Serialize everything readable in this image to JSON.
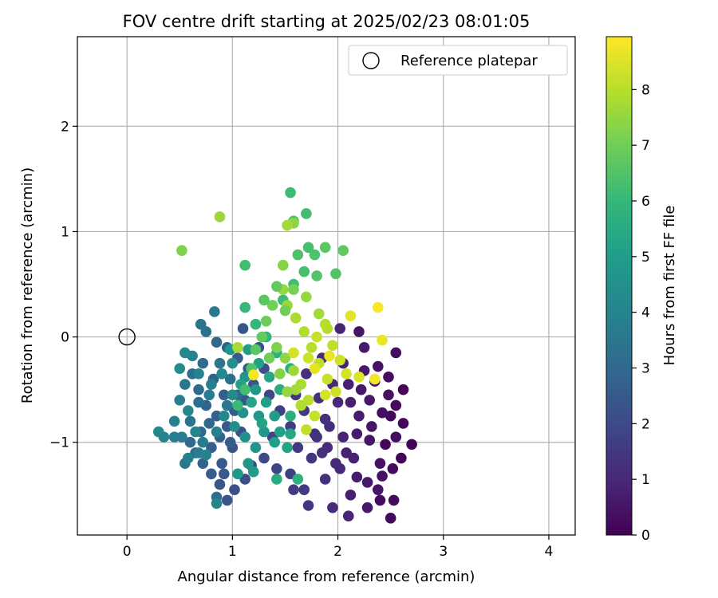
{
  "chart_data": {
    "type": "scatter",
    "title": "FOV centre drift starting at 2025/02/23 08:01:05",
    "xlabel": "Angular distance from reference (arcmin)",
    "ylabel": "Rotation from reference (arcmin)",
    "xlim": [
      -0.47,
      4.25
    ],
    "ylim": [
      -1.88,
      2.85
    ],
    "xticks": [
      "0",
      "1",
      "2",
      "3",
      "4"
    ],
    "yticks": [
      "−1",
      "0",
      "1",
      "2"
    ],
    "xtick_values": [
      0,
      1,
      2,
      3,
      4
    ],
    "ytick_values": [
      -1,
      0,
      1,
      2
    ],
    "grid": true,
    "legend": {
      "position": "top-right",
      "entries": [
        {
          "label": "Reference platepar"
        }
      ]
    },
    "reference_point": {
      "x": 0,
      "y": 0
    },
    "colorbar": {
      "label": "Hours from first FF file",
      "range": [
        0,
        8.95
      ],
      "ticks": [
        "0",
        "1",
        "2",
        "3",
        "4",
        "5",
        "6",
        "7",
        "8"
      ],
      "tick_values": [
        0,
        1,
        2,
        3,
        4,
        5,
        6,
        7,
        8
      ],
      "colormap": [
        "#440154",
        "#482878",
        "#3e4989",
        "#31688e",
        "#26828e",
        "#1f9e89",
        "#35b779",
        "#6ece58",
        "#b5de2b",
        "#fde725"
      ]
    },
    "points": [
      [
        2.55,
        -0.95,
        0.3
      ],
      [
        2.4,
        -1.2,
        0.4
      ],
      [
        2.3,
        -0.6,
        0.6
      ],
      [
        2.5,
        -0.75,
        0.2
      ],
      [
        2.62,
        -0.5,
        0.1
      ],
      [
        2.38,
        -1.45,
        0.5
      ],
      [
        2.18,
        -1.33,
        0.7
      ],
      [
        2.45,
        -1.02,
        0.15
      ],
      [
        2.6,
        -1.15,
        0.05
      ],
      [
        2.7,
        -1.02,
        0.1
      ],
      [
        2.5,
        -1.72,
        0.2
      ],
      [
        2.28,
        -1.62,
        0.6
      ],
      [
        2.1,
        -1.7,
        0.9
      ],
      [
        1.95,
        -1.62,
        1.1
      ],
      [
        2.4,
        -1.55,
        0.3
      ],
      [
        2.53,
        -1.55,
        0.25
      ],
      [
        2.15,
        -1.15,
        0.8
      ],
      [
        2.05,
        -0.95,
        0.9
      ],
      [
        2.2,
        -0.75,
        0.7
      ],
      [
        2.32,
        -0.85,
        0.5
      ],
      [
        2.48,
        -0.55,
        0.4
      ],
      [
        2.35,
        -0.42,
        0.35
      ],
      [
        2.22,
        -0.5,
        0.6
      ],
      [
        2.1,
        -0.45,
        0.8
      ],
      [
        2.0,
        -0.62,
        1.0
      ],
      [
        1.88,
        -0.78,
        1.2
      ],
      [
        1.78,
        -0.92,
        1.3
      ],
      [
        1.9,
        -1.05,
        1.1
      ],
      [
        1.75,
        -1.15,
        1.4
      ],
      [
        1.62,
        -1.05,
        1.5
      ],
      [
        1.55,
        -0.85,
        1.6
      ],
      [
        1.68,
        -0.7,
        1.5
      ],
      [
        1.82,
        -0.58,
        1.2
      ],
      [
        1.95,
        -0.45,
        1.0
      ],
      [
        2.05,
        -0.25,
        0.9
      ],
      [
        2.25,
        -0.1,
        0.6
      ],
      [
        2.55,
        -0.15,
        0.3
      ],
      [
        2.2,
        0.05,
        0.5
      ],
      [
        2.02,
        0.08,
        0.9
      ],
      [
        1.85,
        -0.2,
        1.1
      ],
      [
        1.7,
        -0.35,
        1.3
      ],
      [
        1.6,
        -0.55,
        1.5
      ],
      [
        1.45,
        -0.7,
        1.7
      ],
      [
        1.38,
        -0.95,
        1.8
      ],
      [
        1.3,
        -1.15,
        2.0
      ],
      [
        1.42,
        -1.25,
        1.9
      ],
      [
        1.55,
        -1.3,
        1.7
      ],
      [
        1.68,
        -1.45,
        1.5
      ],
      [
        1.58,
        -1.45,
        1.6
      ],
      [
        1.72,
        -1.6,
        1.4
      ],
      [
        1.88,
        -1.35,
        1.2
      ],
      [
        2.02,
        -1.25,
        1.0
      ],
      [
        2.12,
        -1.5,
        0.8
      ],
      [
        2.28,
        -1.38,
        0.6
      ],
      [
        2.42,
        -1.32,
        0.45
      ],
      [
        2.52,
        -1.25,
        0.3
      ],
      [
        2.62,
        -0.82,
        0.15
      ],
      [
        2.55,
        -0.65,
        0.2
      ],
      [
        2.42,
        -0.72,
        0.35
      ],
      [
        2.3,
        -0.98,
        0.5
      ],
      [
        2.18,
        -0.92,
        0.65
      ],
      [
        2.08,
        -1.1,
        0.85
      ],
      [
        1.98,
        -1.2,
        1.0
      ],
      [
        1.85,
        -1.1,
        1.2
      ],
      [
        1.8,
        -0.95,
        1.3
      ],
      [
        1.92,
        -0.85,
        1.15
      ],
      [
        2.12,
        -0.62,
        0.8
      ],
      [
        2.25,
        -0.32,
        0.6
      ],
      [
        2.38,
        -0.28,
        0.45
      ],
      [
        2.48,
        -0.38,
        0.3
      ],
      [
        1.12,
        -1.35,
        2.1
      ],
      [
        1.02,
        -1.45,
        2.2
      ],
      [
        0.95,
        -1.55,
        2.3
      ],
      [
        0.88,
        -1.4,
        2.4
      ],
      [
        1.18,
        -1.22,
        2.1
      ],
      [
        0.8,
        -1.3,
        2.6
      ],
      [
        0.72,
        -1.2,
        2.8
      ],
      [
        0.65,
        -1.1,
        3.0
      ],
      [
        0.6,
        -1.0,
        3.1
      ],
      [
        0.7,
        -0.9,
        3.0
      ],
      [
        0.8,
        -1.05,
        2.7
      ],
      [
        0.9,
        -1.2,
        2.5
      ],
      [
        1.0,
        -1.05,
        2.3
      ],
      [
        1.08,
        -0.9,
        2.2
      ],
      [
        0.95,
        -0.85,
        2.5
      ],
      [
        0.85,
        -0.75,
        2.7
      ],
      [
        0.75,
        -0.65,
        2.9
      ],
      [
        0.68,
        -0.5,
        3.1
      ],
      [
        0.62,
        -0.35,
        3.2
      ],
      [
        0.72,
        -0.25,
        3.1
      ],
      [
        0.82,
        -0.4,
        2.9
      ],
      [
        0.92,
        -0.55,
        2.7
      ],
      [
        1.02,
        -0.7,
        2.5
      ],
      [
        1.12,
        -0.6,
        2.4
      ],
      [
        1.2,
        -0.45,
        2.3
      ],
      [
        1.15,
        -0.3,
        2.5
      ],
      [
        1.05,
        -0.2,
        2.6
      ],
      [
        0.95,
        -0.1,
        2.8
      ],
      [
        0.85,
        -0.05,
        3.0
      ],
      [
        0.75,
        0.05,
        3.3
      ],
      [
        0.7,
        0.12,
        3.4
      ],
      [
        0.83,
        0.24,
        3.6
      ],
      [
        1.1,
        0.08,
        2.4
      ],
      [
        1.25,
        -0.1,
        2.2
      ],
      [
        1.3,
        -0.3,
        2.1
      ],
      [
        1.35,
        -0.55,
        2.0
      ],
      [
        0.5,
        -0.6,
        3.8
      ],
      [
        0.45,
        -0.8,
        3.9
      ],
      [
        0.52,
        -0.95,
        3.7
      ],
      [
        0.55,
        -1.2,
        3.5
      ],
      [
        0.45,
        -0.95,
        3.8
      ],
      [
        0.35,
        -0.95,
        4.0
      ],
      [
        0.3,
        -0.9,
        4.2
      ],
      [
        0.55,
        -0.45,
        3.6
      ],
      [
        0.62,
        -0.18,
        3.9
      ],
      [
        0.68,
        -0.62,
        3.3
      ],
      [
        0.6,
        -0.8,
        3.4
      ],
      [
        0.78,
        -0.82,
        3.0
      ],
      [
        0.88,
        -0.95,
        2.8
      ],
      [
        0.98,
        -1.0,
        2.6
      ],
      [
        0.92,
        -1.3,
        2.5
      ],
      [
        0.85,
        -1.52,
        3.3
      ],
      [
        0.85,
        -1.58,
        4.1
      ],
      [
        0.68,
        -1.1,
        3.8
      ],
      [
        0.58,
        -1.15,
        3.9
      ],
      [
        0.72,
        -1.0,
        3.7
      ],
      [
        0.78,
        -0.55,
        3.7
      ],
      [
        0.88,
        -0.25,
        3.5
      ],
      [
        0.98,
        -0.4,
        3.3
      ],
      [
        1.05,
        -0.55,
        3.1
      ],
      [
        0.95,
        -0.65,
        3.6
      ],
      [
        0.85,
        -0.9,
        3.9
      ],
      [
        0.75,
        -1.12,
        4.0
      ],
      [
        0.65,
        -0.9,
        4.1
      ],
      [
        0.58,
        -0.7,
        4.2
      ],
      [
        0.5,
        -0.3,
        4.3
      ],
      [
        0.55,
        -0.15,
        4.2
      ],
      [
        0.68,
        -0.35,
        4.0
      ],
      [
        0.8,
        -0.45,
        3.8
      ],
      [
        0.92,
        -0.75,
        4.2
      ],
      [
        1.02,
        -0.85,
        4.4
      ],
      [
        1.12,
        -0.95,
        4.5
      ],
      [
        1.22,
        -1.05,
        4.6
      ],
      [
        1.15,
        -1.2,
        4.7
      ],
      [
        1.05,
        -1.3,
        4.8
      ],
      [
        1.2,
        -1.28,
        4.9
      ],
      [
        1.3,
        -0.9,
        4.8
      ],
      [
        1.4,
        -0.75,
        4.9
      ],
      [
        1.25,
        -0.75,
        4.7
      ],
      [
        1.1,
        -0.72,
        4.5
      ],
      [
        1.0,
        -0.55,
        4.3
      ],
      [
        0.9,
        -0.35,
        4.2
      ],
      [
        1.0,
        -0.25,
        4.4
      ],
      [
        1.12,
        -0.38,
        4.6
      ],
      [
        1.22,
        -0.5,
        4.8
      ],
      [
        1.32,
        -0.62,
        5.0
      ],
      [
        1.45,
        -0.9,
        5.1
      ],
      [
        1.52,
        -1.05,
        5.2
      ],
      [
        1.55,
        -0.92,
        5.3
      ],
      [
        1.4,
        -1.0,
        5.0
      ],
      [
        1.28,
        -0.82,
        5.2
      ],
      [
        1.18,
        -0.62,
        5.3
      ],
      [
        1.08,
        -0.45,
        5.1
      ],
      [
        0.98,
        -0.12,
        4.7
      ],
      [
        1.15,
        -0.12,
        4.9
      ],
      [
        1.25,
        -0.25,
        5.1
      ],
      [
        1.35,
        -0.38,
        5.3
      ],
      [
        1.45,
        -0.5,
        5.5
      ],
      [
        1.55,
        -0.75,
        5.6
      ],
      [
        1.42,
        -1.35,
        5.5
      ],
      [
        1.62,
        -1.35,
        5.7
      ],
      [
        1.55,
        -0.3,
        5.6
      ],
      [
        1.42,
        -0.15,
        5.7
      ],
      [
        1.32,
        0.0,
        5.8
      ],
      [
        1.22,
        0.12,
        5.9
      ],
      [
        1.12,
        0.28,
        6.0
      ],
      [
        1.48,
        0.35,
        6.1
      ],
      [
        1.58,
        0.5,
        6.2
      ],
      [
        1.68,
        0.62,
        6.3
      ],
      [
        1.78,
        0.78,
        6.4
      ],
      [
        1.72,
        0.85,
        6.3
      ],
      [
        1.62,
        0.78,
        6.4
      ],
      [
        1.8,
        0.58,
        6.5
      ],
      [
        1.98,
        0.6,
        6.5
      ],
      [
        1.88,
        0.85,
        6.6
      ],
      [
        2.05,
        0.82,
        6.7
      ],
      [
        1.55,
        1.37,
        6.1
      ],
      [
        1.7,
        1.17,
        6.2
      ],
      [
        1.58,
        1.1,
        6.5
      ],
      [
        1.12,
        0.68,
        6.2
      ],
      [
        0.52,
        0.82,
        7.2
      ],
      [
        0.88,
        1.14,
        7.6
      ],
      [
        1.48,
        0.45,
        7.5
      ],
      [
        1.52,
        0.3,
        7.6
      ],
      [
        1.6,
        0.18,
        7.8
      ],
      [
        1.68,
        0.05,
        7.9
      ],
      [
        1.75,
        -0.1,
        8.0
      ],
      [
        1.82,
        -0.25,
        8.1
      ],
      [
        1.9,
        -0.4,
        8.2
      ],
      [
        1.98,
        -0.52,
        8.3
      ],
      [
        1.58,
        1.08,
        7.4
      ],
      [
        1.52,
        1.06,
        7.7
      ],
      [
        1.48,
        0.68,
        7.3
      ],
      [
        1.38,
        0.3,
        7.0
      ],
      [
        1.32,
        0.15,
        6.9
      ],
      [
        1.28,
        0.0,
        6.8
      ],
      [
        1.22,
        -0.12,
        6.6
      ],
      [
        1.18,
        -0.3,
        6.5
      ],
      [
        1.12,
        -0.5,
        6.2
      ],
      [
        1.05,
        -0.65,
        6.0
      ],
      [
        1.42,
        -0.1,
        7.2
      ],
      [
        1.5,
        -0.2,
        7.4
      ],
      [
        1.58,
        -0.32,
        7.6
      ],
      [
        1.65,
        -0.45,
        7.8
      ],
      [
        1.72,
        -0.6,
        8.0
      ],
      [
        1.78,
        -0.75,
        8.2
      ],
      [
        1.7,
        -0.88,
        8.1
      ],
      [
        1.65,
        -0.65,
        7.9
      ],
      [
        1.6,
        -0.5,
        7.7
      ],
      [
        1.52,
        -0.52,
        7.5
      ],
      [
        1.45,
        -0.35,
        7.3
      ],
      [
        1.35,
        -0.2,
        7.0
      ],
      [
        1.7,
        0.38,
        7.5
      ],
      [
        1.82,
        0.22,
        7.7
      ],
      [
        1.9,
        0.08,
        7.9
      ],
      [
        1.95,
        -0.08,
        8.1
      ],
      [
        2.02,
        -0.22,
        8.3
      ],
      [
        2.08,
        -0.35,
        8.4
      ],
      [
        2.12,
        0.2,
        8.6
      ],
      [
        2.38,
        0.28,
        8.9
      ],
      [
        2.42,
        -0.03,
        8.7
      ],
      [
        2.35,
        -0.4,
        8.8
      ],
      [
        2.2,
        -0.38,
        8.5
      ],
      [
        1.88,
        0.12,
        8.0
      ],
      [
        1.8,
        0.0,
        8.2
      ],
      [
        1.72,
        -0.2,
        8.3
      ],
      [
        1.58,
        -0.15,
        8.4
      ],
      [
        1.88,
        -0.55,
        8.4
      ],
      [
        1.78,
        -0.3,
        8.6
      ],
      [
        1.92,
        -0.18,
        8.7
      ],
      [
        1.05,
        -0.1,
        7.8
      ],
      [
        1.2,
        -0.36,
        8.8
      ],
      [
        1.5,
        0.25,
        7.0
      ],
      [
        1.58,
        0.45,
        7.1
      ],
      [
        1.42,
        0.48,
        6.8
      ],
      [
        1.3,
        0.35,
        6.6
      ]
    ]
  }
}
